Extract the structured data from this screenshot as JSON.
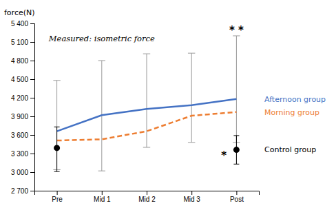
{
  "chart_data": {
    "type": "line",
    "categories": [
      "Pre",
      "Mid 1",
      "Mid 2",
      "Mid 3",
      "Post"
    ],
    "ylabel": "force(N)",
    "annotations": [
      "Measured: isometric force",
      "* *",
      "*"
    ],
    "ylim": [
      2700,
      5400
    ],
    "yticks": [
      {
        "value": 2700,
        "label": "2 700"
      },
      {
        "value": 3000,
        "label": "3 000"
      },
      {
        "value": 3300,
        "label": "3 300"
      },
      {
        "value": 3600,
        "label": "3 600"
      },
      {
        "value": 3900,
        "label": "3 900"
      },
      {
        "value": 4200,
        "label": "4 200"
      },
      {
        "value": 4500,
        "label": "4 500"
      },
      {
        "value": 4800,
        "label": "4 800"
      },
      {
        "value": 5100,
        "label": "5 100"
      },
      {
        "value": 5400,
        "label": "5 400"
      }
    ],
    "grid": false,
    "series": [
      {
        "name": "Afternoon group",
        "color": "#4472C4",
        "line_style": "solid",
        "values": [
          3660,
          3920,
          4020,
          4080,
          4180
        ],
        "err_up": [
          820,
          880,
          890,
          840,
          1020
        ],
        "err_down": [
          620,
          900,
          620,
          600,
          700
        ]
      },
      {
        "name": "Morning group",
        "color": "#ED7D31",
        "line_style": "dashed",
        "values": [
          3510,
          3530,
          3660,
          3910,
          3970
        ]
      },
      {
        "name": "Control group",
        "color": "#000000",
        "type": "scatter",
        "marker": "circle",
        "values": [
          3390,
          null,
          null,
          null,
          3360
        ],
        "err_up": [
          340,
          null,
          null,
          null,
          230
        ],
        "err_down": [
          380,
          null,
          null,
          null,
          230
        ]
      }
    ]
  }
}
